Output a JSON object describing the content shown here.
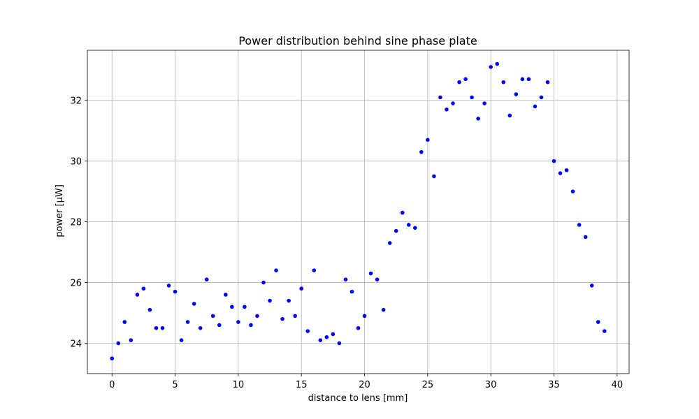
{
  "chart_data": {
    "type": "scatter",
    "title": "Power distribution behind sine phase plate",
    "xlabel": "distance to lens [mm]",
    "ylabel": "power [μW]",
    "xlim": [
      -1.95,
      40.95
    ],
    "ylim": [
      23.0,
      33.65
    ],
    "xticks": [
      0,
      5,
      10,
      15,
      20,
      25,
      30,
      35,
      40
    ],
    "yticks": [
      24,
      26,
      28,
      30,
      32
    ],
    "xtick_labels": [
      "0",
      "5",
      "10",
      "15",
      "20",
      "25",
      "30",
      "35",
      "40"
    ],
    "ytick_labels": [
      "24",
      "26",
      "28",
      "30",
      "32"
    ],
    "grid": true,
    "marker_color": "#0000ff",
    "series": [
      {
        "x": [
          0,
          0.5,
          1,
          1.5,
          2,
          2.5,
          3,
          3.5,
          4,
          4.5,
          5,
          5.5,
          6,
          6.5,
          7,
          7.5,
          8,
          8.5,
          9,
          9.5,
          10,
          10.5,
          11,
          11.5,
          12,
          12.5,
          13,
          13.5,
          14,
          14.5,
          15,
          15.5,
          16,
          16.5,
          17,
          17.5,
          18,
          18.5,
          19,
          19.5,
          20,
          20.5,
          21,
          21.5,
          22,
          22.5,
          23,
          23.5,
          24,
          24.5,
          25,
          25.5,
          26,
          26.5,
          27,
          27.5,
          28,
          28.5,
          29,
          29.5,
          30,
          30.5,
          31,
          31.5,
          32,
          32.5,
          33,
          33.5,
          34,
          34.5,
          35,
          35.5,
          36,
          36.5,
          37,
          37.5,
          38,
          38.5,
          39
        ],
        "y": [
          23.5,
          24.0,
          24.7,
          24.1,
          25.6,
          25.8,
          25.1,
          24.5,
          24.5,
          25.9,
          25.7,
          24.1,
          24.7,
          25.3,
          24.5,
          26.1,
          24.9,
          24.6,
          25.6,
          25.2,
          24.7,
          25.2,
          24.6,
          24.9,
          26.0,
          25.4,
          26.4,
          24.8,
          25.4,
          24.9,
          25.8,
          24.4,
          26.4,
          24.1,
          24.2,
          24.3,
          24.0,
          26.1,
          25.7,
          24.5,
          24.9,
          26.3,
          26.1,
          25.1,
          27.3,
          27.7,
          28.3,
          27.9,
          27.8,
          30.3,
          30.7,
          29.5,
          32.1,
          31.7,
          31.9,
          32.6,
          32.7,
          32.1,
          31.4,
          31.9,
          33.1,
          33.2,
          32.6,
          31.5,
          32.2,
          32.7,
          32.7,
          31.8,
          32.1,
          32.6,
          30.0,
          29.6,
          29.7,
          29.0,
          27.9,
          27.5,
          25.9,
          24.7,
          24.4
        ]
      }
    ]
  }
}
